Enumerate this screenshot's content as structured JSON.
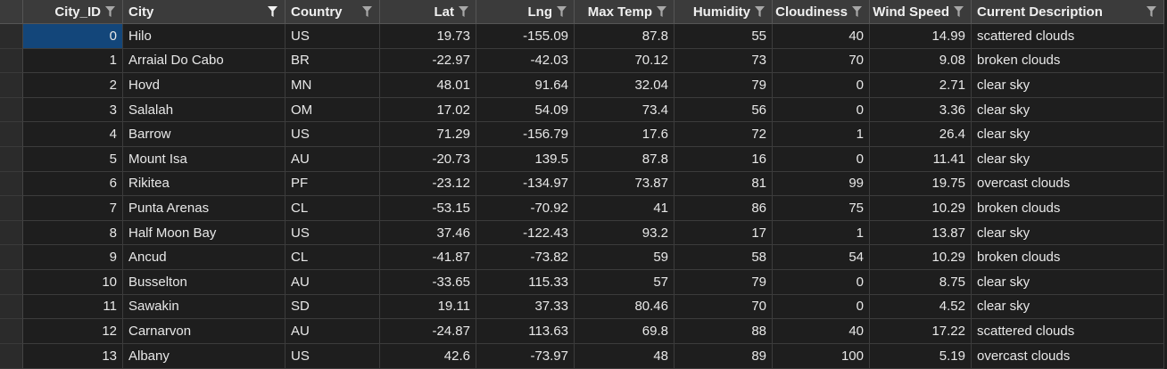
{
  "columns": [
    {
      "label": "City_ID",
      "align": "right"
    },
    {
      "label": "City",
      "align": "left"
    },
    {
      "label": "Country",
      "align": "left"
    },
    {
      "label": "Lat",
      "align": "right"
    },
    {
      "label": "Lng",
      "align": "right"
    },
    {
      "label": "Max Temp",
      "align": "right"
    },
    {
      "label": "Humidity",
      "align": "right"
    },
    {
      "label": "Cloudiness",
      "align": "right"
    },
    {
      "label": "Wind Speed",
      "align": "right"
    },
    {
      "label": "Current Description",
      "align": "left"
    }
  ],
  "rows": [
    [
      "0",
      "Hilo",
      "US",
      "19.73",
      "-155.09",
      "87.8",
      "55",
      "40",
      "14.99",
      "scattered clouds"
    ],
    [
      "1",
      "Arraial Do Cabo",
      "BR",
      "-22.97",
      "-42.03",
      "70.12",
      "73",
      "70",
      "9.08",
      "broken clouds"
    ],
    [
      "2",
      "Hovd",
      "MN",
      "48.01",
      "91.64",
      "32.04",
      "79",
      "0",
      "2.71",
      "clear sky"
    ],
    [
      "3",
      "Salalah",
      "OM",
      "17.02",
      "54.09",
      "73.4",
      "56",
      "0",
      "3.36",
      "clear sky"
    ],
    [
      "4",
      "Barrow",
      "US",
      "71.29",
      "-156.79",
      "17.6",
      "72",
      "1",
      "26.4",
      "clear sky"
    ],
    [
      "5",
      "Mount Isa",
      "AU",
      "-20.73",
      "139.5",
      "87.8",
      "16",
      "0",
      "11.41",
      "clear sky"
    ],
    [
      "6",
      "Rikitea",
      "PF",
      "-23.12",
      "-134.97",
      "73.87",
      "81",
      "99",
      "19.75",
      "overcast clouds"
    ],
    [
      "7",
      "Punta Arenas",
      "CL",
      "-53.15",
      "-70.92",
      "41",
      "86",
      "75",
      "10.29",
      "broken clouds"
    ],
    [
      "8",
      "Half Moon Bay",
      "US",
      "37.46",
      "-122.43",
      "93.2",
      "17",
      "1",
      "13.87",
      "clear sky"
    ],
    [
      "9",
      "Ancud",
      "CL",
      "-41.87",
      "-73.82",
      "59",
      "58",
      "54",
      "10.29",
      "broken clouds"
    ],
    [
      "10",
      "Busselton",
      "AU",
      "-33.65",
      "115.33",
      "57",
      "79",
      "0",
      "8.75",
      "clear sky"
    ],
    [
      "11",
      "Sawakin",
      "SD",
      "19.11",
      "37.33",
      "80.46",
      "70",
      "0",
      "4.52",
      "clear sky"
    ],
    [
      "12",
      "Carnarvon",
      "AU",
      "-24.87",
      "113.63",
      "69.8",
      "88",
      "40",
      "17.22",
      "scattered clouds"
    ],
    [
      "13",
      "Albany",
      "US",
      "42.6",
      "-73.97",
      "48",
      "89",
      "100",
      "5.19",
      "overcast clouds"
    ]
  ],
  "selected_cell": {
    "row": 0,
    "col": 0
  },
  "icons": {
    "filter": "filter-funnel-icon"
  },
  "colors": {
    "header_bg": "#3b3b3b",
    "cell_bg": "#1e1e1e",
    "selected_bg": "#13467a",
    "grid_line": "#3c3c3c",
    "text": "#e8e8e8"
  }
}
